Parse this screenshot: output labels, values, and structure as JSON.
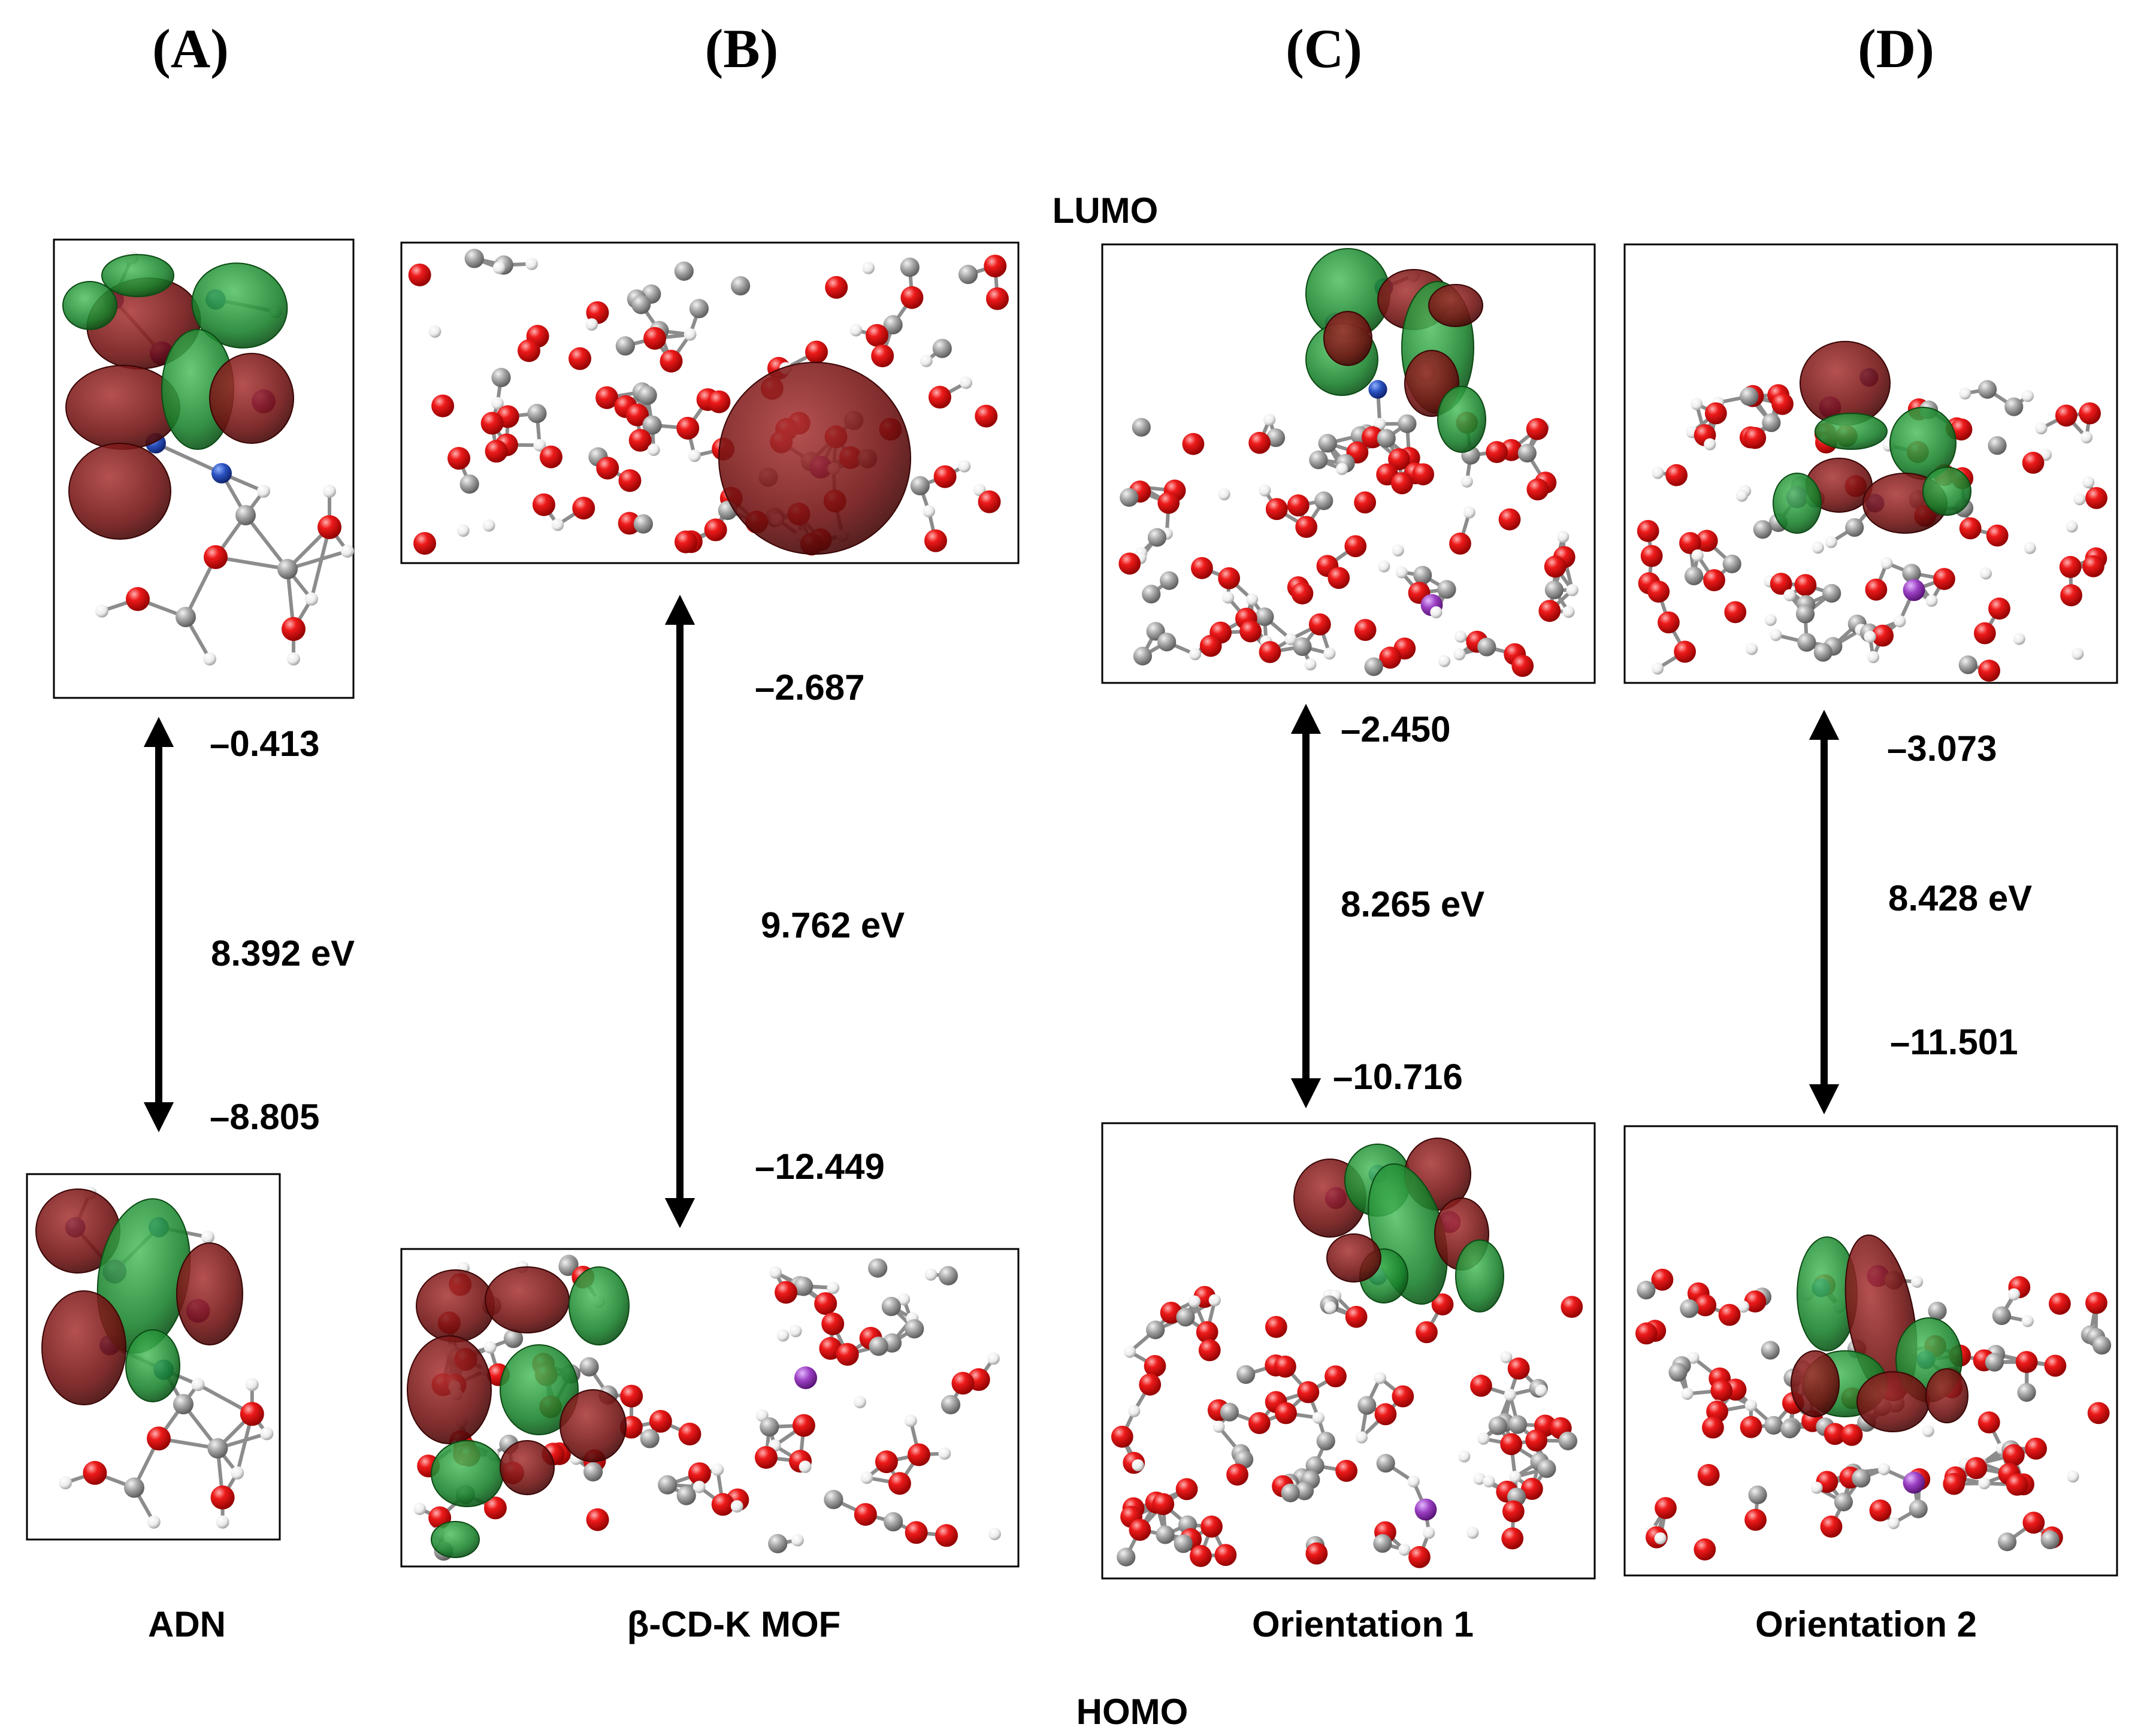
{
  "figure": {
    "lumo_label": "LUMO",
    "homo_label": "HOMO",
    "panels": [
      {
        "letter": "(A)",
        "caption": "ADN",
        "lumo_energy": "–0.413",
        "homo_energy": "–8.805",
        "gap": "8.392 eV"
      },
      {
        "letter": "(B)",
        "caption": "β-CD-K MOF",
        "lumo_energy": "–2.687",
        "homo_energy": "–12.449",
        "gap": "9.762 eV"
      },
      {
        "letter": "(C)",
        "caption": "Orientation 1",
        "lumo_energy": "–2.450",
        "homo_energy": "–10.716",
        "gap": "8.265 eV"
      },
      {
        "letter": "(D)",
        "caption": "Orientation 2",
        "lumo_energy": "–3.073",
        "homo_energy": "–11.501",
        "gap": "8.428 eV"
      }
    ]
  },
  "colors": {
    "oxygen": "#e00000",
    "carbon": "#a8a8a8",
    "hydrogen": "#ffffff",
    "nitrogen": "#1a3fa0",
    "potassium": "#9b3fc2",
    "orbital_positive": "#7a1414",
    "orbital_negative": "#1f8a2e"
  }
}
